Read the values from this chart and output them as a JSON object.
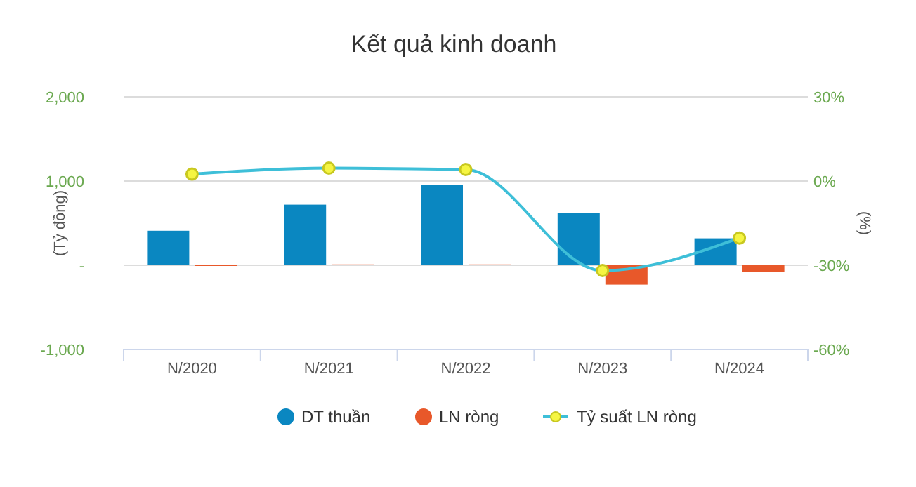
{
  "chart_data": {
    "type": "bar",
    "title": "Kết quả kinh doanh",
    "ylabel": "(Tỷ đồng)",
    "y2label": "(%)",
    "categories": [
      "N/2020",
      "N/2021",
      "N/2022",
      "N/2023",
      "N/2024"
    ],
    "series": [
      {
        "name": "DT thuần",
        "color": "#0a87c1",
        "values": [
          410,
          720,
          950,
          620,
          320
        ]
      },
      {
        "name": "LN ròng",
        "color": "#e8582a",
        "values": [
          0,
          10,
          10,
          -230,
          -80
        ]
      },
      {
        "name": "Tỷ suất LN ròng",
        "type": "line",
        "axis": "y2",
        "color": "#3ebfd8",
        "marker": "circle",
        "values": [
          2.5,
          4.6,
          4.1,
          -31.9,
          -20.3
        ]
      }
    ],
    "ylim": [
      -1000,
      2000
    ],
    "yticks": [
      {
        "value": -1000,
        "label": "-1,000"
      },
      {
        "value": 0,
        "label": "-"
      },
      {
        "value": 1000,
        "label": "1,000"
      },
      {
        "value": 2000,
        "label": "2,000"
      }
    ],
    "y2lim": [
      -60,
      30
    ],
    "y2ticks": [
      {
        "value": -60,
        "label": "-60%"
      },
      {
        "value": -30,
        "label": "-30%"
      },
      {
        "value": 0,
        "label": "0%"
      },
      {
        "value": 30,
        "label": "30%"
      }
    ],
    "grid": "y",
    "legend": "bottom"
  }
}
